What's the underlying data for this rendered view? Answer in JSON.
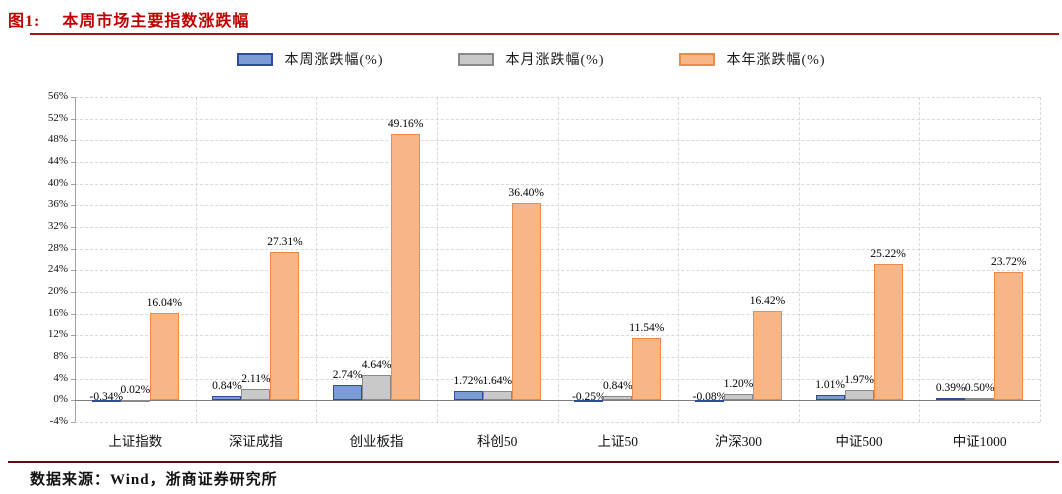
{
  "header": {
    "figure_label": "图1:",
    "title": "本周市场主要指数涨跌幅"
  },
  "footer": {
    "source_text": "数据来源：Wind，浙商证券研究所"
  },
  "colors": {
    "title_red": "#C00000",
    "rule_red": "#A01818",
    "week_fill": "#7C9CD3",
    "week_border": "#2F4C9B",
    "month_fill": "#C9C9C9",
    "month_border": "#898989",
    "year_fill": "#F8B586",
    "year_border": "#EC8A49"
  },
  "chart_data": {
    "type": "bar",
    "title": "本周市场主要指数涨跌幅",
    "categories": [
      "上证指数",
      "深证成指",
      "创业板指",
      "科创50",
      "上证50",
      "沪深300",
      "中证500",
      "中证1000"
    ],
    "series": [
      {
        "name": "本周涨跌幅(%)",
        "fill": "#7C9CD3",
        "border": "#2F4C9B",
        "values": [
          -0.34,
          0.84,
          2.74,
          1.72,
          -0.25,
          -0.08,
          1.01,
          0.39
        ]
      },
      {
        "name": "本月涨跌幅(%)",
        "fill": "#C9C9C9",
        "border": "#898989",
        "values": [
          0.02,
          2.11,
          4.64,
          1.64,
          0.84,
          1.2,
          1.97,
          0.5
        ]
      },
      {
        "name": "本年涨跌幅(%)",
        "fill": "#F8B586",
        "border": "#EC8A49",
        "values": [
          16.04,
          27.31,
          49.16,
          36.4,
          11.54,
          16.42,
          25.22,
          23.72
        ]
      }
    ],
    "ylim": [
      -4,
      56
    ],
    "ytick_step": 4,
    "ytick_suffix": "%",
    "grid": "dashed",
    "legend_position": "top-center",
    "xlabel": "",
    "ylabel": ""
  }
}
